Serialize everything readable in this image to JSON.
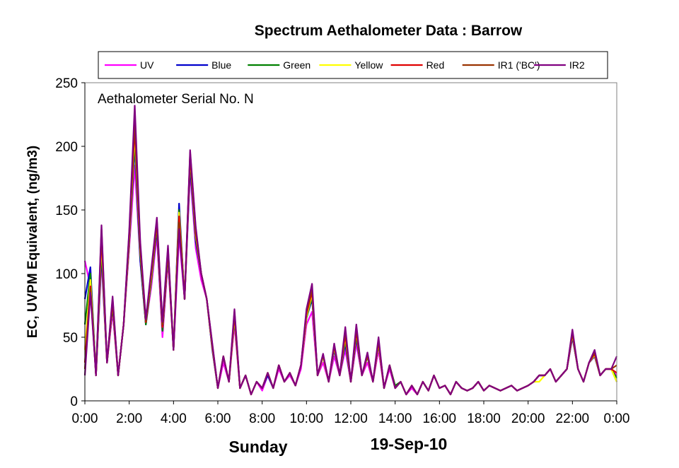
{
  "chart_data": {
    "type": "line",
    "title": "Spectrum Aethalometer Data  :  Barrow",
    "ylabel": "EC, UVPM Equivalent, (ng/m3)",
    "x_day_label": "Sunday",
    "x_date_label": "19-Sep-10",
    "annotation": "Aethalometer  Serial No. N",
    "ylim": [
      0,
      250
    ],
    "yticks": [
      "0",
      "50",
      "100",
      "150",
      "200",
      "250"
    ],
    "xlim_hours": [
      0,
      24
    ],
    "xticks": [
      "0:00",
      "2:00",
      "4:00",
      "6:00",
      "8:00",
      "10:00",
      "12:00",
      "14:00",
      "16:00",
      "18:00",
      "20:00",
      "22:00",
      "0:00"
    ],
    "legend_position": "top",
    "x_hours": [
      0,
      0.25,
      0.5,
      0.75,
      1,
      1.25,
      1.5,
      1.75,
      2,
      2.25,
      2.5,
      2.75,
      3,
      3.25,
      3.5,
      3.75,
      4,
      4.25,
      4.5,
      4.75,
      5,
      5.25,
      5.5,
      5.75,
      6,
      6.25,
      6.5,
      6.75,
      7,
      7.25,
      7.5,
      7.75,
      8,
      8.25,
      8.5,
      8.75,
      9,
      9.25,
      9.5,
      9.75,
      10,
      10.25,
      10.5,
      10.75,
      11,
      11.25,
      11.5,
      11.75,
      12,
      12.25,
      12.5,
      12.75,
      13,
      13.25,
      13.5,
      13.75,
      14,
      14.25,
      14.5,
      14.75,
      15,
      15.25,
      15.5,
      15.75,
      16,
      16.25,
      16.5,
      16.75,
      17,
      17.25,
      17.5,
      17.75,
      18,
      18.25,
      18.5,
      18.75,
      19,
      19.25,
      19.5,
      19.75,
      20,
      20.25,
      20.5,
      20.75,
      21,
      21.25,
      21.5,
      21.75,
      22,
      22.25,
      22.5,
      22.75,
      23,
      23.25,
      23.5,
      23.75,
      24
    ],
    "series": [
      {
        "name": "UV",
        "color": "#ff00ff",
        "values": [
          110,
          90,
          20,
          110,
          30,
          70,
          20,
          60,
          120,
          185,
          110,
          60,
          90,
          130,
          50,
          110,
          40,
          130,
          80,
          180,
          120,
          95,
          80,
          40,
          10,
          30,
          15,
          60,
          10,
          20,
          5,
          15,
          8,
          20,
          10,
          25,
          15,
          20,
          12,
          25,
          60,
          70,
          20,
          30,
          15,
          35,
          20,
          40,
          15,
          45,
          20,
          30,
          15,
          40,
          10,
          25,
          10,
          15,
          5,
          10,
          5,
          15,
          8,
          20,
          10,
          12,
          5,
          15,
          10,
          8,
          10,
          15,
          8,
          12,
          10,
          8,
          10,
          12,
          8,
          10,
          12,
          15,
          20,
          20,
          25,
          15,
          20,
          25,
          50,
          25,
          15,
          30,
          35,
          20,
          25,
          25,
          20
        ]
      },
      {
        "name": "Blue",
        "color": "#0000cc",
        "values": [
          80,
          105,
          20,
          115,
          30,
          75,
          20,
          60,
          125,
          200,
          110,
          60,
          95,
          135,
          55,
          115,
          40,
          155,
          80,
          185,
          125,
          100,
          80,
          40,
          10,
          35,
          15,
          65,
          10,
          20,
          5,
          15,
          10,
          20,
          10,
          28,
          15,
          22,
          12,
          28,
          65,
          80,
          20,
          35,
          15,
          40,
          20,
          45,
          15,
          50,
          20,
          35,
          15,
          45,
          10,
          28,
          10,
          15,
          5,
          12,
          5,
          15,
          8,
          20,
          10,
          12,
          5,
          15,
          10,
          8,
          10,
          15,
          8,
          12,
          10,
          8,
          10,
          12,
          8,
          10,
          12,
          15,
          20,
          20,
          25,
          15,
          20,
          25,
          50,
          25,
          15,
          30,
          35,
          20,
          25,
          25,
          15
        ]
      },
      {
        "name": "Green",
        "color": "#008000",
        "values": [
          60,
          100,
          20,
          120,
          30,
          75,
          20,
          60,
          125,
          205,
          115,
          60,
          95,
          138,
          55,
          115,
          40,
          150,
          80,
          190,
          128,
          100,
          80,
          42,
          10,
          35,
          15,
          65,
          10,
          20,
          5,
          15,
          10,
          22,
          10,
          28,
          15,
          22,
          12,
          28,
          65,
          82,
          20,
          35,
          15,
          42,
          20,
          48,
          15,
          52,
          20,
          35,
          15,
          45,
          10,
          28,
          12,
          15,
          5,
          12,
          5,
          15,
          8,
          20,
          10,
          12,
          5,
          15,
          10,
          8,
          10,
          15,
          8,
          12,
          10,
          8,
          10,
          12,
          8,
          10,
          12,
          15,
          20,
          20,
          25,
          15,
          20,
          25,
          52,
          25,
          15,
          30,
          36,
          20,
          25,
          25,
          18
        ]
      },
      {
        "name": "Yellow",
        "color": "#ffff00",
        "values": [
          40,
          95,
          20,
          125,
          30,
          78,
          20,
          60,
          128,
          210,
          118,
          62,
          98,
          140,
          58,
          118,
          40,
          148,
          80,
          192,
          130,
          100,
          80,
          42,
          10,
          35,
          15,
          66,
          10,
          20,
          5,
          15,
          10,
          22,
          10,
          28,
          15,
          22,
          12,
          28,
          66,
          84,
          20,
          35,
          15,
          42,
          20,
          50,
          15,
          54,
          20,
          36,
          15,
          46,
          10,
          28,
          10,
          15,
          5,
          12,
          5,
          15,
          8,
          20,
          10,
          12,
          5,
          15,
          10,
          8,
          10,
          15,
          8,
          12,
          10,
          8,
          10,
          12,
          8,
          10,
          12,
          15,
          15,
          20,
          25,
          15,
          20,
          25,
          52,
          25,
          15,
          30,
          36,
          20,
          25,
          25,
          15
        ]
      },
      {
        "name": "Red",
        "color": "#e00000",
        "values": [
          30,
          90,
          20,
          130,
          30,
          78,
          20,
          60,
          130,
          215,
          120,
          62,
          100,
          140,
          58,
          118,
          40,
          145,
          80,
          193,
          132,
          100,
          80,
          43,
          10,
          35,
          15,
          68,
          10,
          20,
          5,
          15,
          10,
          22,
          10,
          28,
          15,
          22,
          12,
          28,
          68,
          86,
          20,
          36,
          15,
          43,
          20,
          52,
          15,
          55,
          20,
          36,
          15,
          47,
          10,
          28,
          10,
          15,
          5,
          12,
          5,
          15,
          8,
          20,
          10,
          12,
          5,
          15,
          10,
          8,
          10,
          15,
          8,
          12,
          10,
          8,
          10,
          12,
          8,
          10,
          12,
          15,
          20,
          20,
          25,
          15,
          20,
          25,
          53,
          25,
          15,
          30,
          37,
          20,
          25,
          25,
          22
        ]
      },
      {
        "name": "IR1 ('BC')",
        "color": "#993300",
        "values": [
          25,
          88,
          20,
          135,
          30,
          80,
          20,
          60,
          132,
          220,
          122,
          63,
          102,
          142,
          60,
          120,
          40,
          140,
          80,
          195,
          135,
          100,
          80,
          44,
          10,
          35,
          15,
          70,
          10,
          20,
          5,
          15,
          10,
          22,
          10,
          28,
          15,
          22,
          12,
          28,
          70,
          88,
          20,
          36,
          15,
          44,
          20,
          55,
          15,
          57,
          20,
          37,
          15,
          48,
          10,
          28,
          10,
          15,
          5,
          12,
          5,
          15,
          8,
          20,
          10,
          12,
          5,
          15,
          10,
          8,
          10,
          15,
          8,
          12,
          10,
          8,
          10,
          12,
          8,
          10,
          12,
          15,
          20,
          20,
          25,
          15,
          20,
          25,
          54,
          25,
          15,
          30,
          38,
          20,
          25,
          25,
          28
        ]
      },
      {
        "name": "IR2",
        "color": "#800080",
        "values": [
          20,
          85,
          20,
          138,
          30,
          82,
          20,
          60,
          134,
          232,
          125,
          64,
          104,
          144,
          62,
          122,
          40,
          135,
          80,
          197,
          137,
          100,
          80,
          45,
          10,
          35,
          15,
          72,
          10,
          20,
          5,
          15,
          10,
          22,
          10,
          28,
          15,
          22,
          12,
          28,
          72,
          92,
          20,
          37,
          15,
          45,
          20,
          58,
          15,
          60,
          20,
          38,
          15,
          50,
          10,
          28,
          10,
          15,
          5,
          12,
          5,
          15,
          8,
          20,
          10,
          12,
          5,
          15,
          10,
          8,
          10,
          15,
          8,
          12,
          10,
          8,
          10,
          12,
          8,
          10,
          12,
          15,
          20,
          20,
          25,
          15,
          20,
          25,
          56,
          25,
          15,
          30,
          40,
          20,
          25,
          25,
          35
        ]
      }
    ]
  }
}
